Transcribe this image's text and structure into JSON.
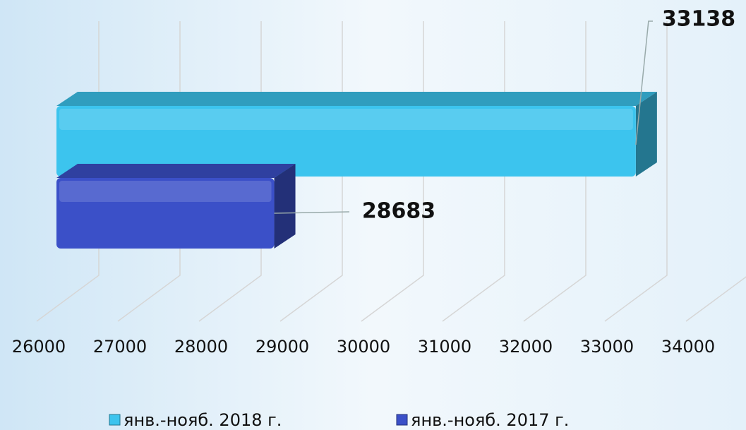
{
  "chart_data": {
    "type": "bar",
    "orientation": "horizontal",
    "categories": [
      null
    ],
    "series": [
      {
        "name": "янв.-нояб. 2018 г.",
        "color": "#3cc4ee",
        "values": [
          33138
        ]
      },
      {
        "name": "янв.-нояб. 2017 г.",
        "color": "#3b50c8",
        "values": [
          28683
        ]
      }
    ],
    "xlim": [
      26000,
      34000
    ],
    "xticks": [
      26000,
      27000,
      28000,
      29000,
      30000,
      31000,
      32000,
      33000,
      34000
    ],
    "grid": true,
    "legend": "bottom"
  }
}
